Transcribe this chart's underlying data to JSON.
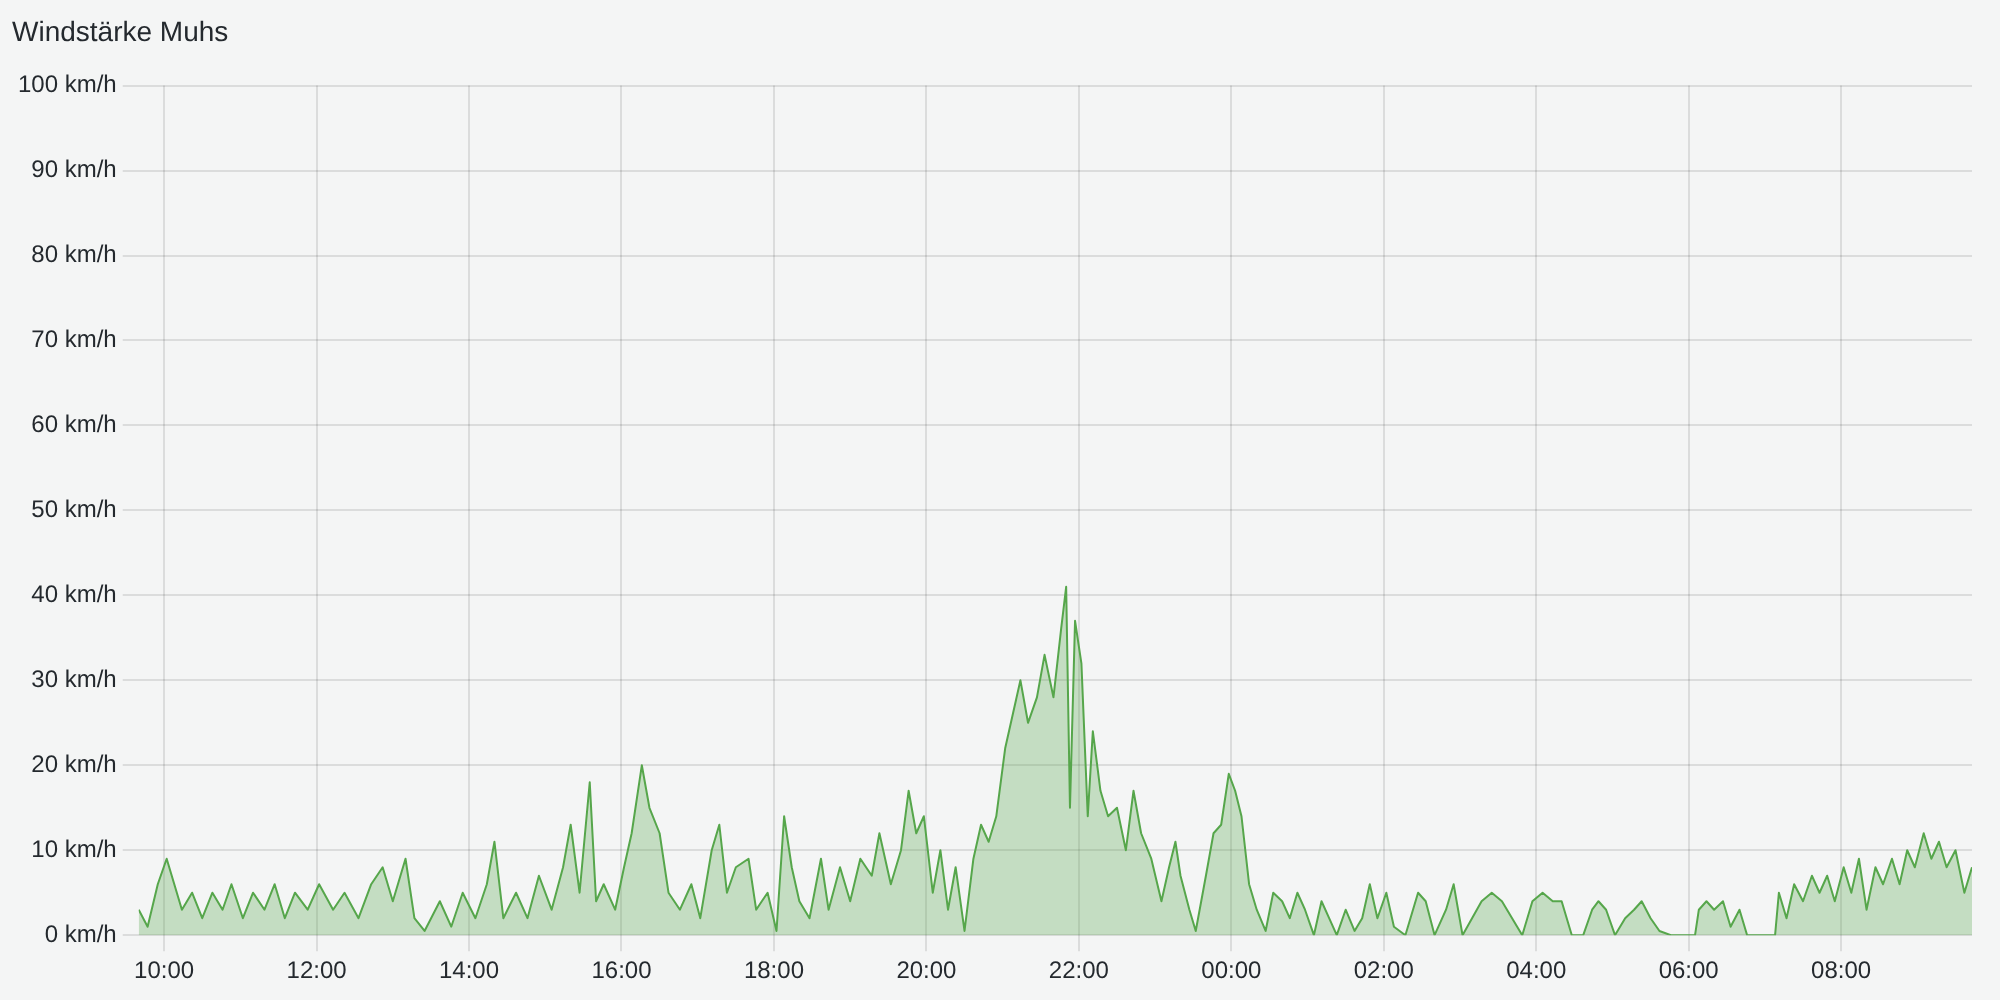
{
  "chart_data": {
    "type": "area",
    "title": "Windstärke Muhs",
    "x": [
      "2000-01-01T09:40",
      "2000-01-01T09:47",
      "2000-01-01T09:55",
      "2000-01-01T10:02",
      "2000-01-01T10:08",
      "2000-01-01T10:14",
      "2000-01-01T10:22",
      "2000-01-01T10:30",
      "2000-01-01T10:38",
      "2000-01-01T10:46",
      "2000-01-01T10:53",
      "2000-01-01T11:02",
      "2000-01-01T11:10",
      "2000-01-01T11:19",
      "2000-01-01T11:27",
      "2000-01-01T11:35",
      "2000-01-01T11:43",
      "2000-01-01T11:53",
      "2000-01-01T12:02",
      "2000-01-01T12:13",
      "2000-01-01T12:22",
      "2000-01-01T12:33",
      "2000-01-01T12:43",
      "2000-01-01T12:52",
      "2000-01-01T13:00",
      "2000-01-01T13:10",
      "2000-01-01T13:17",
      "2000-01-01T13:25",
      "2000-01-01T13:37",
      "2000-01-01T13:46",
      "2000-01-01T13:55",
      "2000-01-01T14:05",
      "2000-01-01T14:14",
      "2000-01-01T14:20",
      "2000-01-01T14:27",
      "2000-01-01T14:37",
      "2000-01-01T14:46",
      "2000-01-01T14:55",
      "2000-01-01T15:05",
      "2000-01-01T15:14",
      "2000-01-01T15:20",
      "2000-01-01T15:27",
      "2000-01-01T15:35",
      "2000-01-01T15:40",
      "2000-01-01T15:46",
      "2000-01-01T15:55",
      "2000-01-01T16:02",
      "2000-01-01T16:08",
      "2000-01-01T16:16",
      "2000-01-01T16:22",
      "2000-01-01T16:30",
      "2000-01-01T16:37",
      "2000-01-01T16:46",
      "2000-01-01T16:55",
      "2000-01-01T17:02",
      "2000-01-01T17:11",
      "2000-01-01T17:17",
      "2000-01-01T17:23",
      "2000-01-01T17:30",
      "2000-01-01T17:40",
      "2000-01-01T17:46",
      "2000-01-01T17:55",
      "2000-01-01T18:02",
      "2000-01-01T18:08",
      "2000-01-01T18:14",
      "2000-01-01T18:20",
      "2000-01-01T18:28",
      "2000-01-01T18:37",
      "2000-01-01T18:43",
      "2000-01-01T18:52",
      "2000-01-01T19:00",
      "2000-01-01T19:08",
      "2000-01-01T19:17",
      "2000-01-01T19:23",
      "2000-01-01T19:32",
      "2000-01-01T19:40",
      "2000-01-01T19:46",
      "2000-01-01T19:52",
      "2000-01-01T19:58",
      "2000-01-01T20:05",
      "2000-01-01T20:11",
      "2000-01-01T20:17",
      "2000-01-01T20:23",
      "2000-01-01T20:30",
      "2000-01-01T20:37",
      "2000-01-01T20:43",
      "2000-01-01T20:49",
      "2000-01-01T20:55",
      "2000-01-01T21:02",
      "2000-01-01T21:08",
      "2000-01-01T21:14",
      "2000-01-01T21:20",
      "2000-01-01T21:27",
      "2000-01-01T21:33",
      "2000-01-01T21:40",
      "2000-01-01T21:46",
      "2000-01-01T21:50",
      "2000-01-01T21:53",
      "2000-01-01T21:57",
      "2000-01-01T22:02",
      "2000-01-01T22:07",
      "2000-01-01T22:11",
      "2000-01-01T22:17",
      "2000-01-01T22:23",
      "2000-01-01T22:30",
      "2000-01-01T22:37",
      "2000-01-01T22:43",
      "2000-01-01T22:49",
      "2000-01-01T22:57",
      "2000-01-01T23:05",
      "2000-01-01T23:11",
      "2000-01-01T23:16",
      "2000-01-01T23:20",
      "2000-01-01T23:27",
      "2000-01-01T23:32",
      "2000-01-01T23:40",
      "2000-01-01T23:46",
      "2000-01-01T23:52",
      "2000-01-01T23:58",
      "2000-01-02T00:03",
      "2000-01-02T00:08",
      "2000-01-02T00:14",
      "2000-01-02T00:20",
      "2000-01-02T00:27",
      "2000-01-02T00:33",
      "2000-01-02T00:40",
      "2000-01-02T00:46",
      "2000-01-02T00:52",
      "2000-01-02T00:58",
      "2000-01-02T01:05",
      "2000-01-02T01:11",
      "2000-01-02T01:17",
      "2000-01-02T01:23",
      "2000-01-02T01:30",
      "2000-01-02T01:37",
      "2000-01-02T01:43",
      "2000-01-02T01:49",
      "2000-01-02T01:55",
      "2000-01-02T02:02",
      "2000-01-02T02:08",
      "2000-01-02T02:17",
      "2000-01-02T02:27",
      "2000-01-02T02:33",
      "2000-01-02T02:40",
      "2000-01-02T02:49",
      "2000-01-02T02:55",
      "2000-01-02T03:02",
      "2000-01-02T03:17",
      "2000-01-02T03:25",
      "2000-01-02T03:33",
      "2000-01-02T03:41",
      "2000-01-02T03:49",
      "2000-01-02T03:57",
      "2000-01-02T04:05",
      "2000-01-02T04:13",
      "2000-01-02T04:20",
      "2000-01-02T04:28",
      "2000-01-02T04:37",
      "2000-01-02T04:44",
      "2000-01-02T04:49",
      "2000-01-02T04:55",
      "2000-01-02T05:02",
      "2000-01-02T05:10",
      "2000-01-02T05:17",
      "2000-01-02T05:23",
      "2000-01-02T05:30",
      "2000-01-02T05:37",
      "2000-01-02T05:46",
      "2000-01-02T05:55",
      "2000-01-02T06:05",
      "2000-01-02T06:08",
      "2000-01-02T06:14",
      "2000-01-02T06:20",
      "2000-01-02T06:27",
      "2000-01-02T06:33",
      "2000-01-02T06:40",
      "2000-01-02T06:46",
      "2000-01-02T06:58",
      "2000-01-02T07:08",
      "2000-01-02T07:11",
      "2000-01-02T07:17",
      "2000-01-02T07:23",
      "2000-01-02T07:30",
      "2000-01-02T07:37",
      "2000-01-02T07:43",
      "2000-01-02T07:49",
      "2000-01-02T07:55",
      "2000-01-02T08:02",
      "2000-01-02T08:08",
      "2000-01-02T08:14",
      "2000-01-02T08:20",
      "2000-01-02T08:27",
      "2000-01-02T08:33",
      "2000-01-02T08:40",
      "2000-01-02T08:46",
      "2000-01-02T08:52",
      "2000-01-02T08:58",
      "2000-01-02T09:05",
      "2000-01-02T09:11",
      "2000-01-02T09:17",
      "2000-01-02T09:23",
      "2000-01-02T09:30",
      "2000-01-02T09:37",
      "2000-01-02T09:43"
    ],
    "series": [
      {
        "color": "#56a64b",
        "values": [
          3,
          1,
          6,
          9,
          6,
          3,
          5,
          2,
          5,
          3,
          6,
          2,
          5,
          3,
          6,
          2,
          5,
          3,
          6,
          3,
          5,
          2,
          6,
          8,
          4,
          9,
          2,
          0.5,
          4,
          1,
          5,
          2,
          6,
          11,
          2,
          5,
          2,
          7,
          3,
          8,
          13,
          5,
          18,
          4,
          6,
          3,
          8,
          12,
          20,
          15,
          12,
          5,
          3,
          6,
          2,
          10,
          13,
          5,
          8,
          9,
          3,
          5,
          0.5,
          14,
          8,
          4,
          2,
          9,
          3,
          8,
          4,
          9,
          7,
          12,
          6,
          10,
          17,
          12,
          14,
          5,
          10,
          3,
          8,
          0.5,
          9,
          13,
          11,
          14,
          22,
          26,
          30,
          25,
          28,
          33,
          28,
          36,
          41,
          15,
          37,
          32,
          14,
          24,
          17,
          14,
          15,
          10,
          17,
          12,
          9,
          4,
          8,
          11,
          7,
          3,
          0.5,
          7,
          12,
          13,
          19,
          17,
          14,
          6,
          3,
          0.5,
          5,
          4,
          2,
          5,
          3,
          0,
          4,
          2,
          0,
          3,
          0.5,
          2,
          6,
          2,
          5,
          1,
          0,
          5,
          4,
          0,
          3,
          6,
          0,
          4,
          5,
          4,
          2,
          0,
          4,
          5,
          4,
          4,
          0,
          0,
          3,
          4,
          3,
          0,
          2,
          3,
          4,
          2,
          0.5,
          0,
          0,
          0,
          3,
          4,
          3,
          4,
          1,
          3,
          0,
          0,
          0,
          5,
          2,
          6,
          4,
          7,
          5,
          7,
          4,
          8,
          5,
          9,
          3,
          8,
          6,
          9,
          6,
          10,
          8,
          12,
          9,
          11,
          8,
          10,
          5,
          8
        ]
      }
    ],
    "xlim": [
      "2000-01-01T09:40",
      "2000-01-02T09:43"
    ],
    "xticks": [
      {
        "value": "2000-01-01T10:00",
        "label": "10:00"
      },
      {
        "value": "2000-01-01T12:00",
        "label": "12:00"
      },
      {
        "value": "2000-01-01T14:00",
        "label": "14:00"
      },
      {
        "value": "2000-01-01T16:00",
        "label": "16:00"
      },
      {
        "value": "2000-01-01T18:00",
        "label": "18:00"
      },
      {
        "value": "2000-01-01T20:00",
        "label": "20:00"
      },
      {
        "value": "2000-01-01T22:00",
        "label": "22:00"
      },
      {
        "value": "2000-01-02T00:00",
        "label": "00:00"
      },
      {
        "value": "2000-01-02T02:00",
        "label": "02:00"
      },
      {
        "value": "2000-01-02T04:00",
        "label": "04:00"
      },
      {
        "value": "2000-01-02T06:00",
        "label": "06:00"
      },
      {
        "value": "2000-01-02T08:00",
        "label": "08:00"
      }
    ],
    "ylim": [
      0,
      100
    ],
    "yticks": [
      {
        "value": 0,
        "label": "0 km/h"
      },
      {
        "value": 10,
        "label": "10 km/h"
      },
      {
        "value": 20,
        "label": "20 km/h"
      },
      {
        "value": 30,
        "label": "30 km/h"
      },
      {
        "value": 40,
        "label": "40 km/h"
      },
      {
        "value": 50,
        "label": "50 km/h"
      },
      {
        "value": 60,
        "label": "60 km/h"
      },
      {
        "value": 70,
        "label": "70 km/h"
      },
      {
        "value": 80,
        "label": "80 km/h"
      },
      {
        "value": 90,
        "label": "90 km/h"
      },
      {
        "value": 100,
        "label": "100 km/h"
      }
    ],
    "grid": true,
    "legend": false
  }
}
